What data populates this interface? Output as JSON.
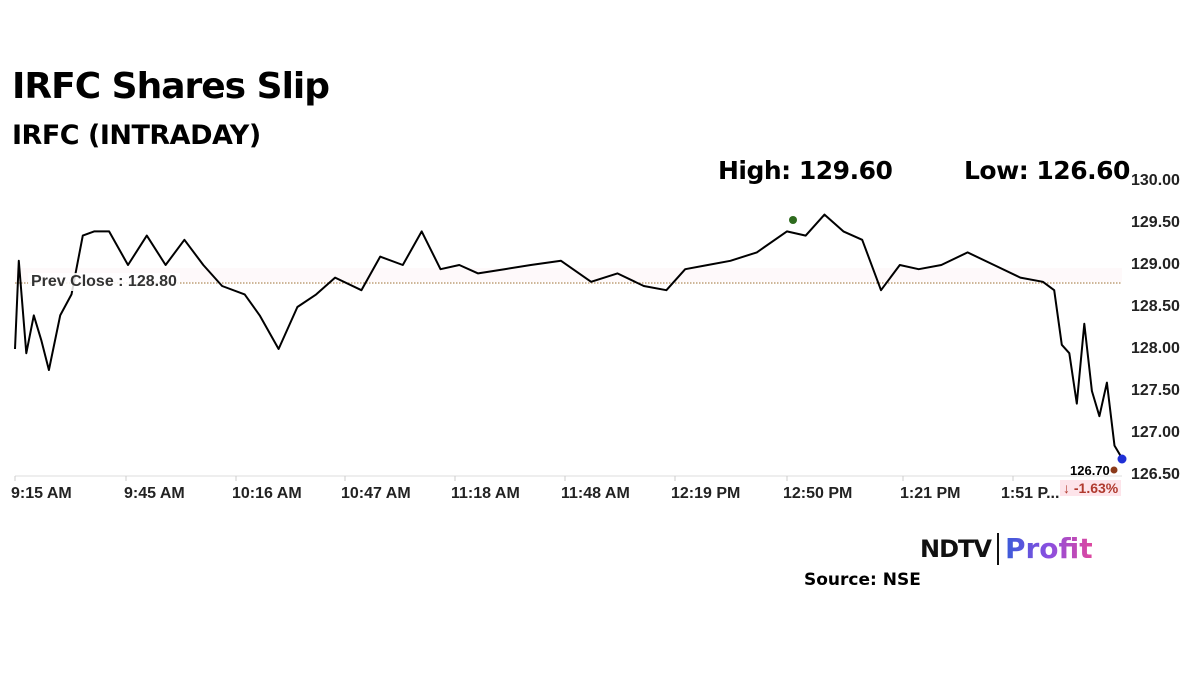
{
  "header": {
    "title": "IRFC Shares Slip",
    "subtitle": "IRFC (INTRADAY)",
    "high_label": "High: 129.60",
    "low_label": "Low: 126.60"
  },
  "annotations": {
    "prev_close_label": "Prev Close : 128.80",
    "last_price": "126.70",
    "last_change": "↓ -1.63%"
  },
  "footer": {
    "logo_left": "NDTV",
    "logo_right": "Profit",
    "source": "Source: NSE"
  },
  "colors": {
    "line": "#000000",
    "prev_close_line": "#b08a5a",
    "high_marker": "#2e6b1e",
    "low_marker": "#1f2fd6",
    "last_marker": "#8b3a1a",
    "change_text": "#b03a2e"
  },
  "chart_data": {
    "type": "line",
    "title": "IRFC Shares Slip",
    "subtitle": "IRFC (INTRADAY)",
    "xlabel": "",
    "ylabel": "",
    "ylim": [
      126.5,
      130.0
    ],
    "yticks": [
      "130.00",
      "129.50",
      "129.00",
      "128.50",
      "128.00",
      "127.50",
      "127.00",
      "126.50"
    ],
    "xticks": [
      "9:15 AM",
      "9:45 AM",
      "10:16 AM",
      "10:47 AM",
      "11:18 AM",
      "11:48 AM",
      "12:19 PM",
      "12:50 PM",
      "1:21 PM",
      "1:51 P..."
    ],
    "grid": false,
    "reference_lines": [
      {
        "name": "Prev Close",
        "value": 128.8
      }
    ],
    "high": 129.6,
    "low": 126.6,
    "last": 126.7,
    "change_pct": -1.63,
    "series": [
      {
        "name": "IRFC",
        "x": [
          "9:15",
          "9:16",
          "9:18",
          "9:20",
          "9:22",
          "9:24",
          "9:27",
          "9:30",
          "9:33",
          "9:36",
          "9:40",
          "9:45",
          "9:50",
          "9:55",
          "10:00",
          "10:05",
          "10:10",
          "10:16",
          "10:20",
          "10:25",
          "10:30",
          "10:35",
          "10:40",
          "10:47",
          "10:52",
          "10:58",
          "11:03",
          "11:08",
          "11:13",
          "11:18",
          "11:25",
          "11:32",
          "11:40",
          "11:48",
          "11:55",
          "12:02",
          "12:08",
          "12:13",
          "12:19",
          "12:25",
          "12:32",
          "12:40",
          "12:45",
          "12:50",
          "12:55",
          "13:00",
          "13:05",
          "13:10",
          "13:15",
          "13:21",
          "13:28",
          "13:35",
          "13:42",
          "13:48",
          "13:51",
          "13:53",
          "13:55",
          "13:57",
          "13:59",
          "14:01",
          "14:03",
          "14:05",
          "14:07",
          "14:09"
        ],
        "values": [
          128.0,
          129.05,
          127.95,
          128.4,
          128.1,
          127.75,
          128.4,
          128.65,
          129.35,
          129.4,
          129.4,
          129.0,
          129.35,
          129.0,
          129.3,
          129.0,
          128.75,
          128.65,
          128.4,
          128.0,
          128.5,
          128.65,
          128.85,
          128.7,
          129.1,
          129.0,
          129.4,
          128.95,
          129.0,
          128.9,
          128.95,
          129.0,
          129.05,
          128.8,
          128.9,
          128.75,
          128.7,
          128.95,
          129.0,
          129.05,
          129.15,
          129.4,
          129.35,
          129.6,
          129.4,
          129.3,
          128.7,
          129.0,
          128.95,
          129.0,
          129.15,
          129.0,
          128.85,
          128.8,
          128.7,
          128.05,
          127.95,
          127.35,
          128.3,
          127.5,
          127.2,
          127.6,
          126.85,
          126.7
        ]
      }
    ]
  }
}
